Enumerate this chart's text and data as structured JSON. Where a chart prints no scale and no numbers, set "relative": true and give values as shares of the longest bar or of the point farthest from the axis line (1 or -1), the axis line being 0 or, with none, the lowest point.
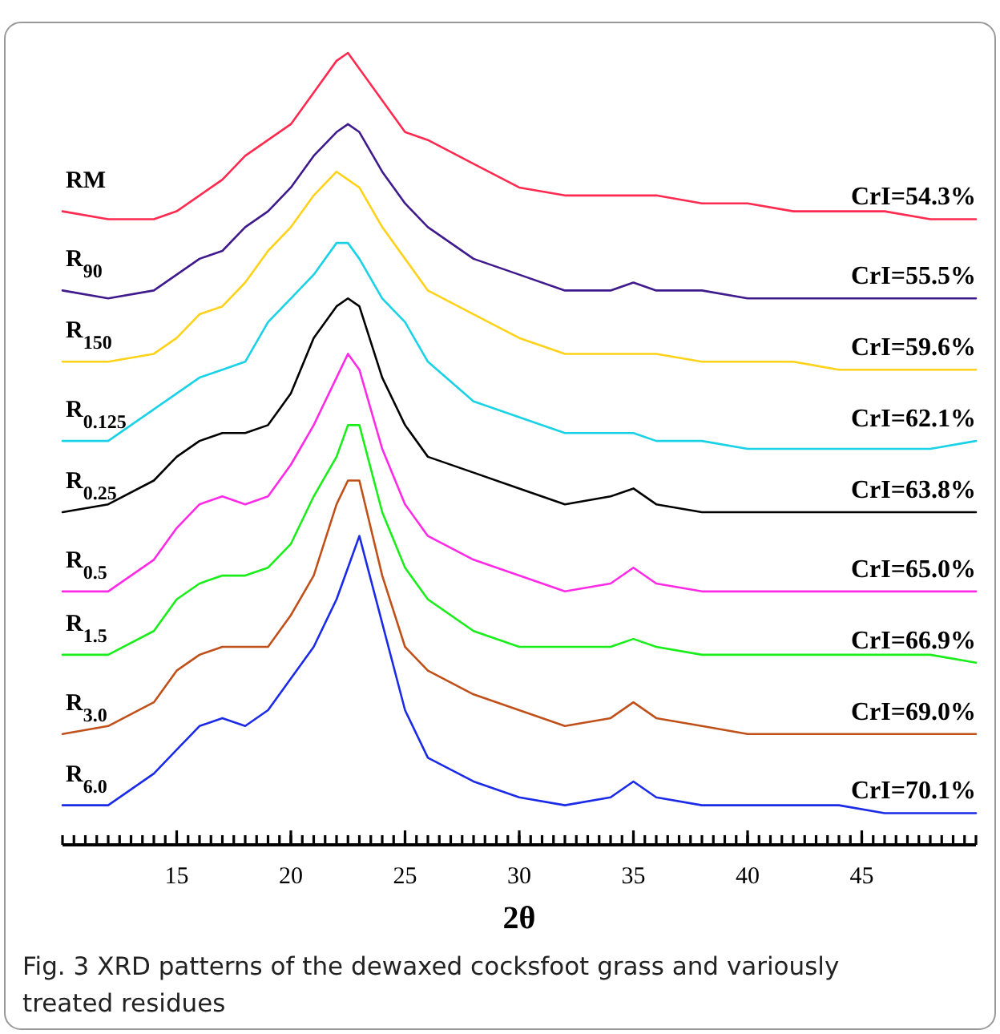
{
  "chart_data": {
    "type": "line",
    "relative": true,
    "title": "Fig. 3  XRD patterns of the dewaxed cocksfoot grass and variously treated residues",
    "xlabel": "2θ",
    "x": [
      10,
      12,
      14,
      15,
      16,
      17,
      18,
      19,
      20,
      21,
      22,
      22.5,
      23,
      24,
      25,
      26,
      28,
      30,
      32,
      34,
      35,
      36,
      38,
      40,
      42,
      44,
      46,
      48,
      50
    ],
    "xlim": [
      10,
      50
    ],
    "xticks": [
      15,
      20,
      25,
      30,
      35,
      40,
      45
    ],
    "legend": false,
    "series": [
      {
        "name": "RM",
        "color": "#ff2a4f",
        "values": [
          0.8,
          0.79,
          0.79,
          0.8,
          0.82,
          0.84,
          0.87,
          0.89,
          0.91,
          0.95,
          0.99,
          1.0,
          0.98,
          0.94,
          0.9,
          0.89,
          0.86,
          0.83,
          0.82,
          0.82,
          0.82,
          0.82,
          0.81,
          0.81,
          0.8,
          0.8,
          0.8,
          0.79,
          0.79
        ]
      },
      {
        "name": "R$_{90}$",
        "color": "#3f1a8c",
        "values": [
          0.7,
          0.69,
          0.7,
          0.72,
          0.74,
          0.75,
          0.78,
          0.8,
          0.83,
          0.87,
          0.9,
          0.91,
          0.9,
          0.85,
          0.81,
          0.78,
          0.74,
          0.72,
          0.7,
          0.7,
          0.71,
          0.7,
          0.7,
          0.69,
          0.69,
          0.69,
          0.69,
          0.69,
          0.69
        ]
      },
      {
        "name": "R$_{150}$",
        "color": "#ffd21a",
        "values": [
          0.61,
          0.61,
          0.62,
          0.64,
          0.67,
          0.68,
          0.71,
          0.75,
          0.78,
          0.82,
          0.85,
          0.84,
          0.83,
          0.78,
          0.74,
          0.7,
          0.67,
          0.64,
          0.62,
          0.62,
          0.62,
          0.62,
          0.61,
          0.61,
          0.61,
          0.6,
          0.6,
          0.6,
          0.6
        ]
      },
      {
        "name": "R$_{0.125}$",
        "color": "#1ad2e6",
        "values": [
          0.51,
          0.51,
          0.55,
          0.57,
          0.59,
          0.6,
          0.61,
          0.66,
          0.69,
          0.72,
          0.76,
          0.76,
          0.74,
          0.69,
          0.66,
          0.61,
          0.56,
          0.54,
          0.52,
          0.52,
          0.52,
          0.51,
          0.51,
          0.5,
          0.5,
          0.5,
          0.5,
          0.5,
          0.51
        ]
      },
      {
        "name": "R$_{0.25}$",
        "color": "#000000",
        "values": [
          0.42,
          0.43,
          0.46,
          0.49,
          0.51,
          0.52,
          0.52,
          0.53,
          0.57,
          0.64,
          0.68,
          0.69,
          0.68,
          0.59,
          0.53,
          0.49,
          0.47,
          0.45,
          0.43,
          0.44,
          0.45,
          0.43,
          0.42,
          0.42,
          0.42,
          0.42,
          0.42,
          0.42,
          0.42
        ]
      },
      {
        "name": "R$_{0.5}$",
        "color": "#ff2ae6",
        "values": [
          0.32,
          0.32,
          0.36,
          0.4,
          0.43,
          0.44,
          0.43,
          0.44,
          0.48,
          0.53,
          0.59,
          0.62,
          0.6,
          0.5,
          0.43,
          0.39,
          0.36,
          0.34,
          0.32,
          0.33,
          0.35,
          0.33,
          0.32,
          0.32,
          0.32,
          0.32,
          0.32,
          0.32,
          0.32
        ]
      },
      {
        "name": "R$_{1.5}$",
        "color": "#1aee1a",
        "values": [
          0.24,
          0.24,
          0.27,
          0.31,
          0.33,
          0.34,
          0.34,
          0.35,
          0.38,
          0.44,
          0.49,
          0.53,
          0.53,
          0.42,
          0.35,
          0.31,
          0.27,
          0.25,
          0.25,
          0.25,
          0.26,
          0.25,
          0.24,
          0.24,
          0.24,
          0.24,
          0.24,
          0.24,
          0.23
        ]
      },
      {
        "name": "R$_{3.0}$",
        "color": "#c0501a",
        "values": [
          0.14,
          0.15,
          0.18,
          0.22,
          0.24,
          0.25,
          0.25,
          0.25,
          0.29,
          0.34,
          0.43,
          0.46,
          0.46,
          0.34,
          0.25,
          0.22,
          0.19,
          0.17,
          0.15,
          0.16,
          0.18,
          0.16,
          0.15,
          0.14,
          0.14,
          0.14,
          0.14,
          0.14,
          0.14
        ]
      },
      {
        "name": "R$_{6.0}$",
        "color": "#1a2ae6",
        "values": [
          0.05,
          0.05,
          0.09,
          0.12,
          0.15,
          0.16,
          0.15,
          0.17,
          0.21,
          0.25,
          0.31,
          0.35,
          0.39,
          0.28,
          0.17,
          0.11,
          0.08,
          0.06,
          0.05,
          0.06,
          0.08,
          0.06,
          0.05,
          0.05,
          0.05,
          0.05,
          0.04,
          0.04,
          0.04
        ]
      }
    ],
    "annotations": [
      "CrI=54.3%",
      "CrI=55.5%",
      "CrI=59.6%",
      "CrI=62.1%",
      "CrI=63.8%",
      "CrI=65.0%",
      "CrI=66.9%",
      "CrI=69.0%",
      "CrI=70.1%"
    ]
  }
}
